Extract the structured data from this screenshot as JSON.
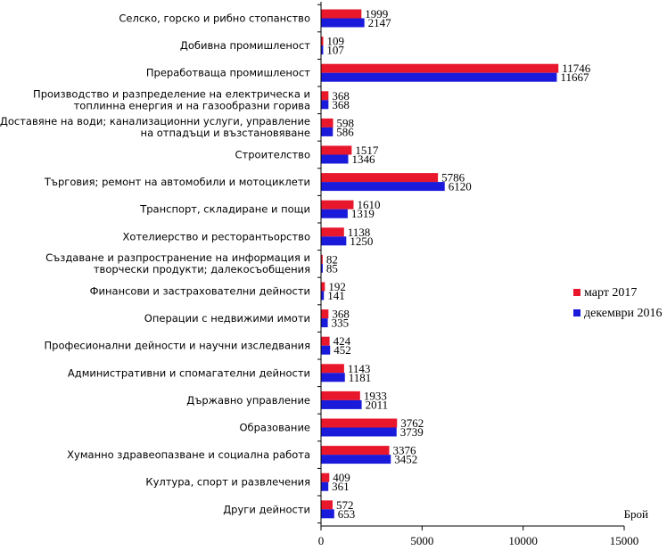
{
  "chart_data": {
    "type": "bar",
    "orientation": "horizontal",
    "xlabel": "Брой",
    "xlim": [
      0,
      15000
    ],
    "xticks": [
      0,
      5000,
      10000,
      15000
    ],
    "xtick_labels": [
      "0",
      "5000",
      "10000",
      "15000"
    ],
    "categories": [
      [
        "Селско, горско и рибно стопанство"
      ],
      [
        "Добивна промишленост"
      ],
      [
        "Преработваща промишленост"
      ],
      [
        "Производство и разпределение на електрическа и",
        "топлинна енергия и на газообразни горива"
      ],
      [
        "Доставяне на води; канализационни услуги, управление",
        "на отпадъци и възстановяване"
      ],
      [
        "Строителство"
      ],
      [
        "Търговия; ремонт на автомобили и мотоциклети"
      ],
      [
        "Транспорт, складиране и пощи"
      ],
      [
        "Хотелиерство и ресторантьорство"
      ],
      [
        "Създаване и разпространение на информация и",
        "творчески продукти; далекосъобщения"
      ],
      [
        "Финансови и застрахователни дейности"
      ],
      [
        "Операции с недвижими имоти"
      ],
      [
        "Професионални дейности и научни изследвания"
      ],
      [
        "Административни и спомагателни дейности"
      ],
      [
        "Държавно управление"
      ],
      [
        "Образование"
      ],
      [
        "Хуманно здравеопазване и социална работа"
      ],
      [
        "Култура, спорт и развлечения"
      ],
      [
        "Други дейности"
      ]
    ],
    "series": [
      {
        "name": "март 2017",
        "color": "#e8172c",
        "values": [
          1999,
          109,
          11746,
          368,
          598,
          1517,
          5786,
          1610,
          1138,
          82,
          192,
          368,
          424,
          1143,
          1933,
          3762,
          3376,
          409,
          572
        ]
      },
      {
        "name": "декември 2016",
        "color": "#1a1adb",
        "values": [
          2147,
          107,
          11667,
          368,
          586,
          1346,
          6120,
          1319,
          1250,
          85,
          141,
          335,
          452,
          1181,
          2011,
          3739,
          3452,
          361,
          653
        ]
      }
    ],
    "legend_position": "right"
  }
}
